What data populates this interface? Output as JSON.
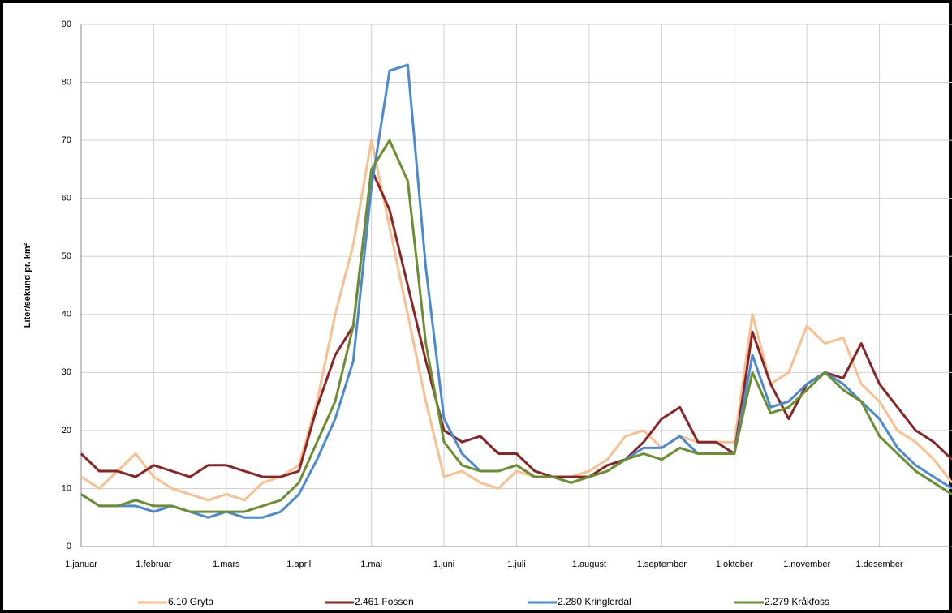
{
  "chart_data": {
    "type": "line",
    "y_label": "Liter/sekund pr. km²",
    "categories": [
      "1.januar",
      null,
      null,
      null,
      "1.februar",
      null,
      null,
      null,
      "1.mars",
      null,
      null,
      null,
      "1.april",
      null,
      null,
      null,
      "1.mai",
      null,
      null,
      null,
      "1.juni",
      null,
      null,
      null,
      "1.juli",
      null,
      null,
      null,
      "1.august",
      null,
      null,
      null,
      "1.september",
      null,
      null,
      null,
      "1.oktober",
      null,
      null,
      null,
      "1.november",
      null,
      null,
      null,
      "1.desember",
      null,
      null,
      null,
      null
    ],
    "series": [
      {
        "name": "6.10 Gryta",
        "color": "#f9bf8f",
        "values": [
          12,
          10,
          13,
          16,
          12,
          10,
          9,
          8,
          9,
          8,
          11,
          12,
          14,
          25,
          40,
          52,
          70,
          55,
          40,
          25,
          12,
          13,
          11,
          10,
          13,
          12,
          12,
          12,
          13,
          15,
          19,
          20,
          17,
          19,
          18,
          18,
          18,
          40,
          28,
          30,
          38,
          35,
          36,
          28,
          25,
          20,
          18,
          15,
          11
        ]
      },
      {
        "name": "2.461 Fossen",
        "color": "#8b2424",
        "values": [
          16,
          13,
          13,
          12,
          14,
          13,
          12,
          14,
          14,
          13,
          12,
          12,
          13,
          24,
          33,
          38,
          65,
          58,
          45,
          32,
          20,
          18,
          19,
          16,
          16,
          13,
          12,
          12,
          12,
          14,
          15,
          18,
          22,
          24,
          18,
          18,
          16,
          37,
          28,
          22,
          28,
          30,
          29,
          35,
          28,
          24,
          20,
          18,
          15
        ]
      },
      {
        "name": "2.280 Kringlerdal",
        "color": "#4a8ad4",
        "values": [
          9,
          7,
          7,
          7,
          6,
          7,
          6,
          5,
          6,
          5,
          5,
          6,
          9,
          15,
          22,
          32,
          62,
          82,
          83,
          48,
          22,
          16,
          13,
          13,
          14,
          12,
          12,
          11,
          12,
          13,
          15,
          17,
          17,
          19,
          16,
          16,
          16,
          33,
          24,
          25,
          28,
          30,
          28,
          25,
          22,
          17,
          14,
          12,
          10
        ]
      },
      {
        "name": "2.279 Kråkfoss",
        "color": "#6b8f2e",
        "values": [
          9,
          7,
          7,
          8,
          7,
          7,
          6,
          6,
          6,
          6,
          7,
          8,
          11,
          18,
          25,
          38,
          65,
          70,
          63,
          35,
          18,
          14,
          13,
          13,
          14,
          12,
          12,
          11,
          12,
          13,
          15,
          16,
          15,
          17,
          16,
          16,
          16,
          30,
          23,
          24,
          27,
          30,
          27,
          25,
          19,
          16,
          13,
          11,
          9
        ]
      }
    ],
    "ylim": [
      0,
      90
    ],
    "yticks": [
      0,
      10,
      20,
      30,
      40,
      50,
      60,
      70,
      80,
      90
    ],
    "grid": true,
    "legend": "bottom"
  }
}
